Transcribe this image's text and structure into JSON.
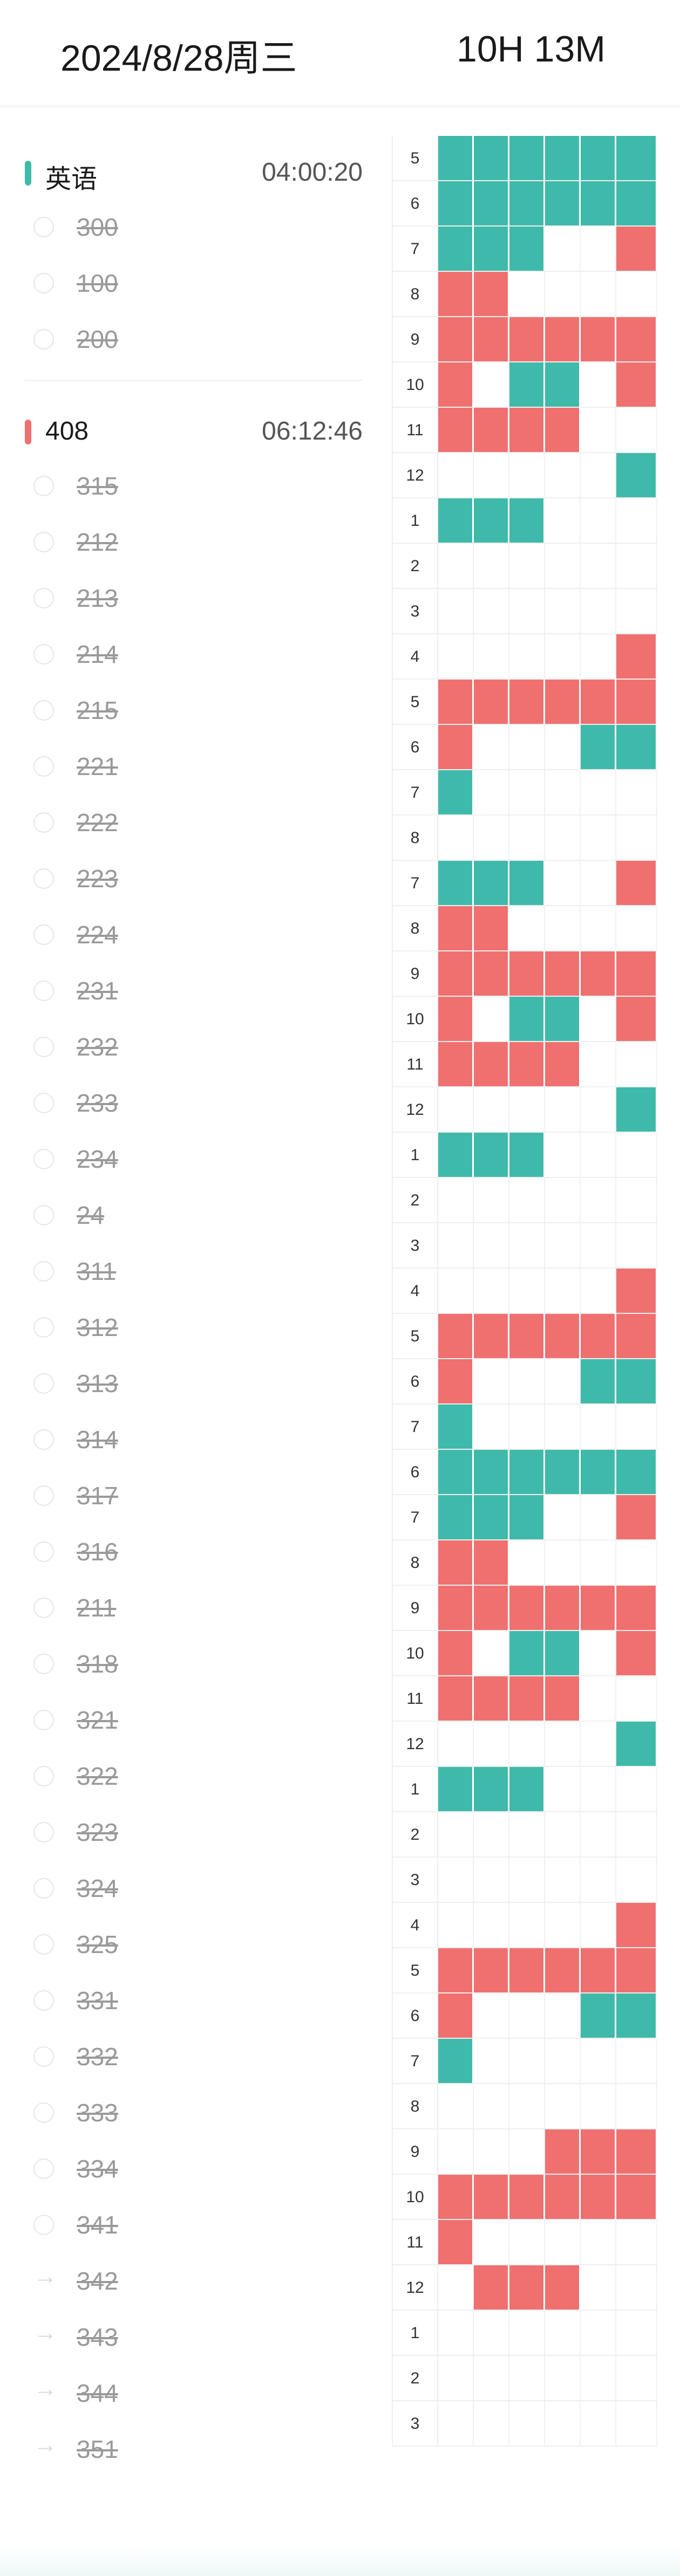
{
  "header": {
    "date": "2024/8/28周三",
    "total": "10H 13M"
  },
  "colors": {
    "english": "#3fbaaa",
    "subject408": "#f07070"
  },
  "subjects": [
    {
      "name": "英语",
      "time": "04:00:20",
      "color": "#3fbaaa",
      "tasks": [
        {
          "label": "300",
          "marker": "circle"
        },
        {
          "label": "100",
          "marker": "circle"
        },
        {
          "label": "200",
          "marker": "circle"
        }
      ]
    },
    {
      "name": "408",
      "time": "06:12:46",
      "color": "#f07070",
      "tasks": [
        {
          "label": "315",
          "marker": "circle"
        },
        {
          "label": "212",
          "marker": "circle"
        },
        {
          "label": "213",
          "marker": "circle"
        },
        {
          "label": "214",
          "marker": "circle"
        },
        {
          "label": "215",
          "marker": "circle"
        },
        {
          "label": "221",
          "marker": "circle"
        },
        {
          "label": "222",
          "marker": "circle"
        },
        {
          "label": "223",
          "marker": "circle"
        },
        {
          "label": "224",
          "marker": "circle"
        },
        {
          "label": "231",
          "marker": "circle"
        },
        {
          "label": "232",
          "marker": "circle"
        },
        {
          "label": "233",
          "marker": "circle"
        },
        {
          "label": "234",
          "marker": "circle"
        },
        {
          "label": "24",
          "marker": "circle"
        },
        {
          "label": "311",
          "marker": "circle"
        },
        {
          "label": "312",
          "marker": "circle"
        },
        {
          "label": "313",
          "marker": "circle"
        },
        {
          "label": "314",
          "marker": "circle"
        },
        {
          "label": "317",
          "marker": "circle"
        },
        {
          "label": "316",
          "marker": "circle"
        },
        {
          "label": "211",
          "marker": "circle"
        },
        {
          "label": "318",
          "marker": "circle"
        },
        {
          "label": "321",
          "marker": "circle"
        },
        {
          "label": "322",
          "marker": "circle"
        },
        {
          "label": "323",
          "marker": "circle"
        },
        {
          "label": "324",
          "marker": "circle"
        },
        {
          "label": "325",
          "marker": "circle"
        },
        {
          "label": "331",
          "marker": "circle"
        },
        {
          "label": "332",
          "marker": "circle"
        },
        {
          "label": "333",
          "marker": "circle"
        },
        {
          "label": "334",
          "marker": "circle"
        },
        {
          "label": "341",
          "marker": "circle"
        },
        {
          "label": "342",
          "marker": "arrow"
        },
        {
          "label": "343",
          "marker": "arrow"
        },
        {
          "label": "344",
          "marker": "arrow"
        },
        {
          "label": "351",
          "marker": "arrow"
        }
      ]
    }
  ],
  "timeline": {
    "rows": [
      {
        "label": "5",
        "cells": [
          "",
          "g",
          "g",
          "g",
          "g",
          "g",
          "g"
        ]
      },
      {
        "label": "6",
        "cells": [
          "g",
          "g",
          "g",
          "g",
          "g",
          "g"
        ]
      },
      {
        "label": "7",
        "cells": [
          "g",
          "g",
          "g",
          "",
          "",
          "r"
        ]
      },
      {
        "label": "8",
        "cells": [
          "r",
          "r",
          "",
          "",
          "",
          ""
        ]
      },
      {
        "label": "9",
        "cells": [
          "r",
          "r",
          "r",
          "r",
          "r",
          "r"
        ]
      },
      {
        "label": "10",
        "cells": [
          "r",
          "",
          "g",
          "g",
          "",
          "r"
        ]
      },
      {
        "label": "11",
        "cells": [
          "r",
          "r",
          "r",
          "r",
          "",
          ""
        ]
      },
      {
        "label": "12",
        "cells": [
          "",
          "",
          "",
          "",
          "",
          "g"
        ]
      },
      {
        "label": "1",
        "cells": [
          "g",
          "g",
          "g",
          "",
          "",
          ""
        ]
      },
      {
        "label": "2",
        "cells": [
          "",
          "",
          "",
          "",
          "",
          ""
        ]
      },
      {
        "label": "3",
        "cells": [
          "",
          "",
          "",
          "",
          "",
          ""
        ]
      },
      {
        "label": "4",
        "cells": [
          "",
          "",
          "",
          "",
          "",
          "r"
        ]
      },
      {
        "label": "5",
        "cells": [
          "r",
          "r",
          "r",
          "r",
          "r",
          "r"
        ]
      },
      {
        "label": "6",
        "cells": [
          "r",
          "",
          "",
          "",
          "g",
          "g"
        ]
      },
      {
        "label": "7",
        "cells": [
          "g",
          "",
          "",
          "",
          "",
          ""
        ]
      },
      {
        "label": "8",
        "cells": [
          "",
          "",
          "",
          "",
          "",
          ""
        ]
      },
      {
        "label": "7",
        "cells": [
          "g",
          "g",
          "g",
          "",
          "",
          "r"
        ]
      },
      {
        "label": "8",
        "cells": [
          "r",
          "r",
          "",
          "",
          "",
          ""
        ]
      },
      {
        "label": "9",
        "cells": [
          "r",
          "r",
          "r",
          "r",
          "r",
          "r"
        ]
      },
      {
        "label": "10",
        "cells": [
          "r",
          "",
          "g",
          "g",
          "",
          "r"
        ]
      },
      {
        "label": "11",
        "cells": [
          "r",
          "r",
          "r",
          "r",
          "",
          ""
        ]
      },
      {
        "label": "12",
        "cells": [
          "",
          "",
          "",
          "",
          "",
          "g"
        ]
      },
      {
        "label": "1",
        "cells": [
          "g",
          "g",
          "g",
          "",
          "",
          ""
        ]
      },
      {
        "label": "2",
        "cells": [
          "",
          "",
          "",
          "",
          "",
          ""
        ]
      },
      {
        "label": "3",
        "cells": [
          "",
          "",
          "",
          "",
          "",
          ""
        ]
      },
      {
        "label": "4",
        "cells": [
          "",
          "",
          "",
          "",
          "",
          "r"
        ]
      },
      {
        "label": "5",
        "cells": [
          "r",
          "r",
          "r",
          "r",
          "r",
          "r"
        ]
      },
      {
        "label": "6",
        "cells": [
          "r",
          "",
          "",
          "",
          "g",
          "g"
        ]
      },
      {
        "label": "7",
        "cells": [
          "g",
          "",
          "",
          "",
          "",
          ""
        ]
      },
      {
        "label": "6",
        "cells": [
          "g",
          "g",
          "g",
          "g",
          "g",
          "g"
        ]
      },
      {
        "label": "7",
        "cells": [
          "g",
          "g",
          "g",
          "",
          "",
          "r"
        ]
      },
      {
        "label": "8",
        "cells": [
          "r",
          "r",
          "",
          "",
          "",
          ""
        ]
      },
      {
        "label": "9",
        "cells": [
          "r",
          "r",
          "r",
          "r",
          "r",
          "r"
        ]
      },
      {
        "label": "10",
        "cells": [
          "r",
          "",
          "g",
          "g",
          "",
          "r"
        ]
      },
      {
        "label": "11",
        "cells": [
          "r",
          "r",
          "r",
          "r",
          "",
          ""
        ]
      },
      {
        "label": "12",
        "cells": [
          "",
          "",
          "",
          "",
          "",
          "g"
        ]
      },
      {
        "label": "1",
        "cells": [
          "g",
          "g",
          "g",
          "",
          "",
          ""
        ]
      },
      {
        "label": "2",
        "cells": [
          "",
          "",
          "",
          "",
          "",
          ""
        ]
      },
      {
        "label": "3",
        "cells": [
          "",
          "",
          "",
          "",
          "",
          ""
        ]
      },
      {
        "label": "4",
        "cells": [
          "",
          "",
          "",
          "",
          "",
          "r"
        ]
      },
      {
        "label": "5",
        "cells": [
          "r",
          "r",
          "r",
          "r",
          "r",
          "r"
        ]
      },
      {
        "label": "6",
        "cells": [
          "r",
          "",
          "",
          "",
          "g",
          "g"
        ]
      },
      {
        "label": "7",
        "cells": [
          "g",
          "",
          "",
          "",
          "",
          ""
        ]
      },
      {
        "label": "8",
        "cells": [
          "",
          "",
          "",
          "",
          "",
          ""
        ]
      },
      {
        "label": "9",
        "cells": [
          "",
          "",
          "",
          "r",
          "r",
          "r"
        ]
      },
      {
        "label": "10",
        "cells": [
          "r",
          "r",
          "r",
          "r",
          "r",
          "r"
        ]
      },
      {
        "label": "11",
        "cells": [
          "r",
          "",
          "",
          "",
          "",
          ""
        ]
      },
      {
        "label": "12",
        "cells": [
          "",
          "r",
          "r",
          "r",
          "",
          ""
        ]
      },
      {
        "label": "1",
        "cells": [
          "",
          "",
          "",
          "",
          "",
          ""
        ]
      },
      {
        "label": "2",
        "cells": [
          "",
          "",
          "",
          "",
          "",
          ""
        ]
      },
      {
        "label": "3",
        "cells": [
          "",
          "",
          "",
          "",
          "",
          ""
        ]
      }
    ]
  }
}
